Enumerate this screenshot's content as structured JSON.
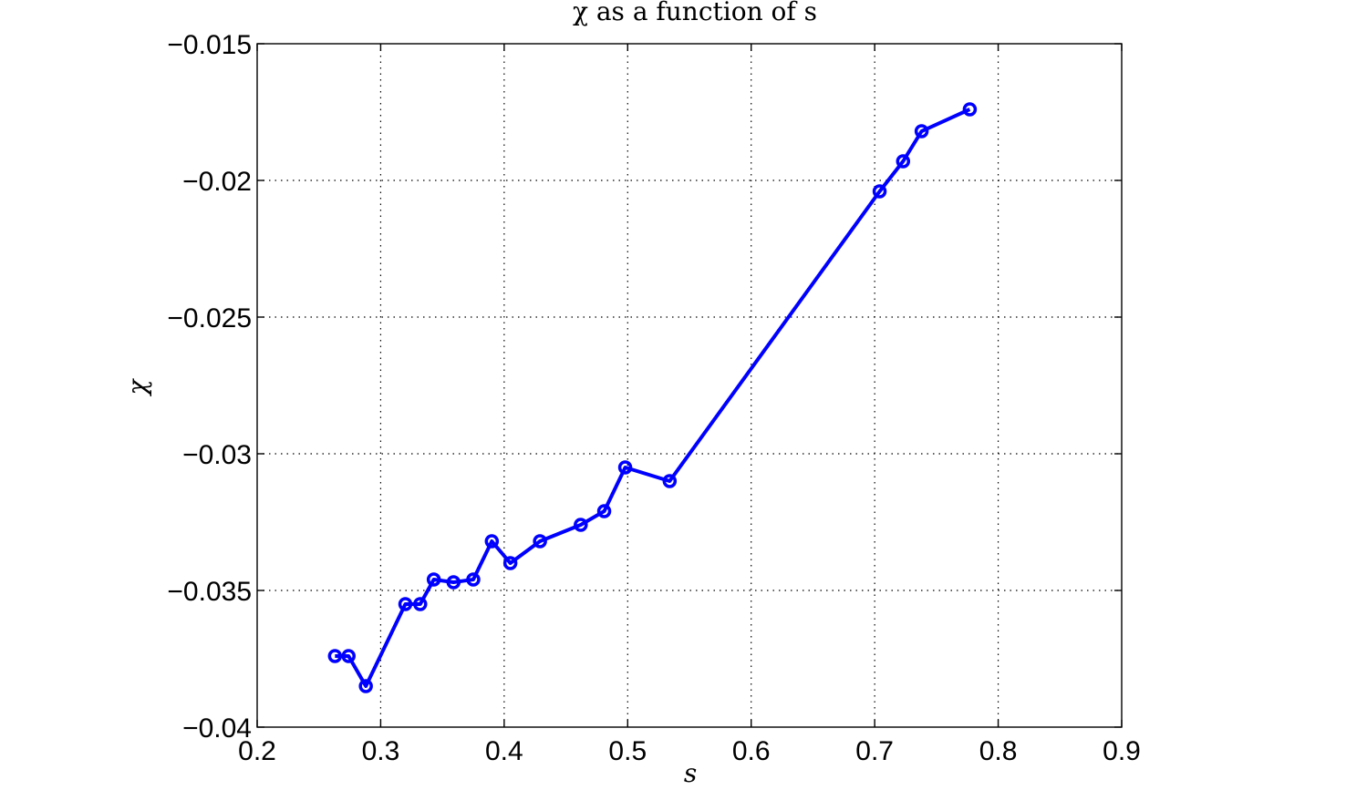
{
  "chart_data": {
    "type": "line",
    "title": "χ as a function of s",
    "xlabel": "s",
    "ylabel": "χ",
    "xlim": [
      0.2,
      0.9
    ],
    "ylim": [
      -0.04,
      -0.015
    ],
    "grid": true,
    "x_ticks": [
      0.2,
      0.3,
      0.4,
      0.5,
      0.6,
      0.7,
      0.8,
      0.9
    ],
    "x_tick_labels": [
      "0.2",
      "0.3",
      "0.4",
      "0.5",
      "0.6",
      "0.7",
      "0.8",
      "0.9"
    ],
    "y_ticks": [
      -0.015,
      -0.02,
      -0.025,
      -0.03,
      -0.035,
      -0.04
    ],
    "y_tick_labels": [
      "−0.015",
      "−0.02",
      "−0.025",
      "−0.03",
      "−0.035",
      "−0.04"
    ],
    "series": [
      {
        "color": "#0000ff",
        "marker": "circle",
        "x": [
          0.263,
          0.274,
          0.288,
          0.32,
          0.332,
          0.343,
          0.359,
          0.375,
          0.39,
          0.405,
          0.429,
          0.462,
          0.481,
          0.498,
          0.534,
          0.704,
          0.723,
          0.738,
          0.777
        ],
        "y": [
          -0.0374,
          -0.0374,
          -0.0385,
          -0.0355,
          -0.0355,
          -0.0346,
          -0.0347,
          -0.0346,
          -0.0332,
          -0.034,
          -0.0332,
          -0.0326,
          -0.0321,
          -0.0305,
          -0.031,
          -0.0204,
          -0.0193,
          -0.0182,
          -0.0174
        ]
      }
    ]
  }
}
